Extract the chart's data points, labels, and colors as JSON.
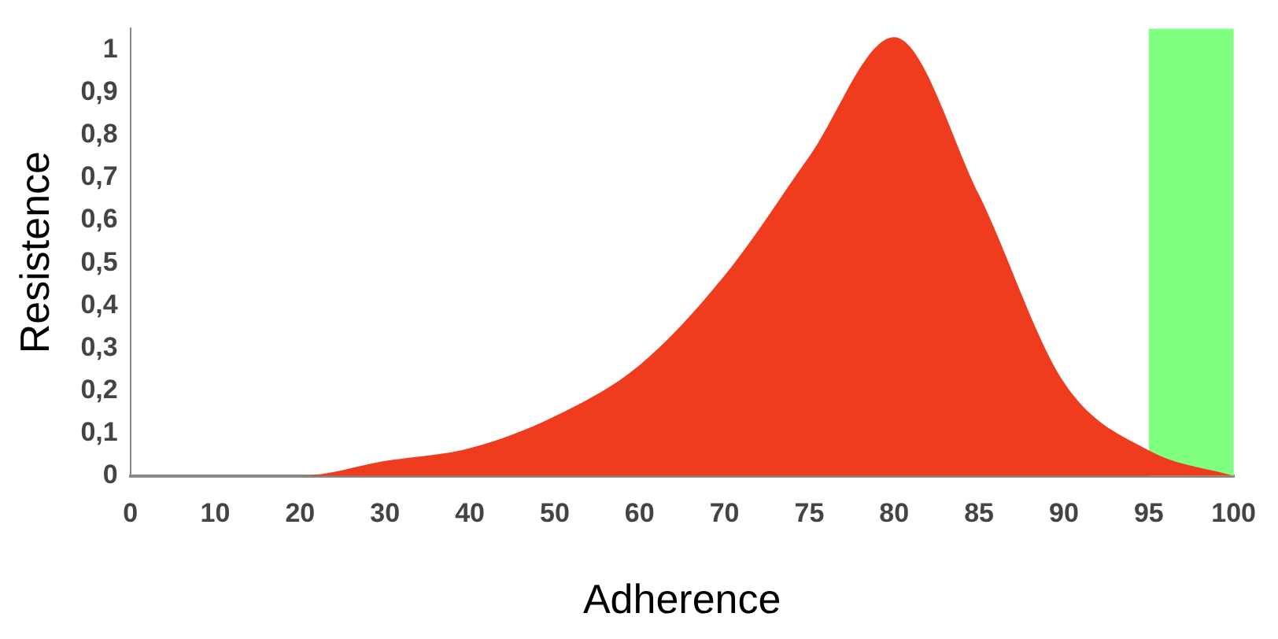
{
  "chart_data": {
    "type": "area",
    "xlabel": "Adherence",
    "ylabel": "Resistence",
    "categories": [
      "0",
      "10",
      "20",
      "30",
      "40",
      "50",
      "60",
      "70",
      "75",
      "80",
      "85",
      "90",
      "95",
      "100"
    ],
    "series": [
      {
        "color": "#f03c1e",
        "values": [
          0,
          0,
          0,
          0.035,
          0.065,
          0.14,
          0.26,
          0.47,
          0.75,
          1.03,
          0.66,
          0.22,
          0.06,
          0
        ]
      }
    ],
    "ylim": [
      0,
      1.05
    ],
    "yticks": [
      0,
      {
        "value": 0.1,
        "label": "0,1"
      },
      {
        "value": 0.2,
        "label": "0,2"
      },
      {
        "value": 0.3,
        "label": "0,3"
      },
      {
        "value": 0.4,
        "label": "0,4"
      },
      {
        "value": 0.5,
        "label": "0,5"
      },
      {
        "value": 0.6,
        "label": "0,6"
      },
      {
        "value": 0.7,
        "label": "0,7"
      },
      {
        "value": 0.8,
        "label": "0,8"
      },
      {
        "value": 0.9,
        "label": "0,9"
      },
      1
    ],
    "bands": [
      {
        "axis": "x",
        "from": "95",
        "to": "100",
        "color": "#80ff80"
      }
    ],
    "marker": "none"
  }
}
